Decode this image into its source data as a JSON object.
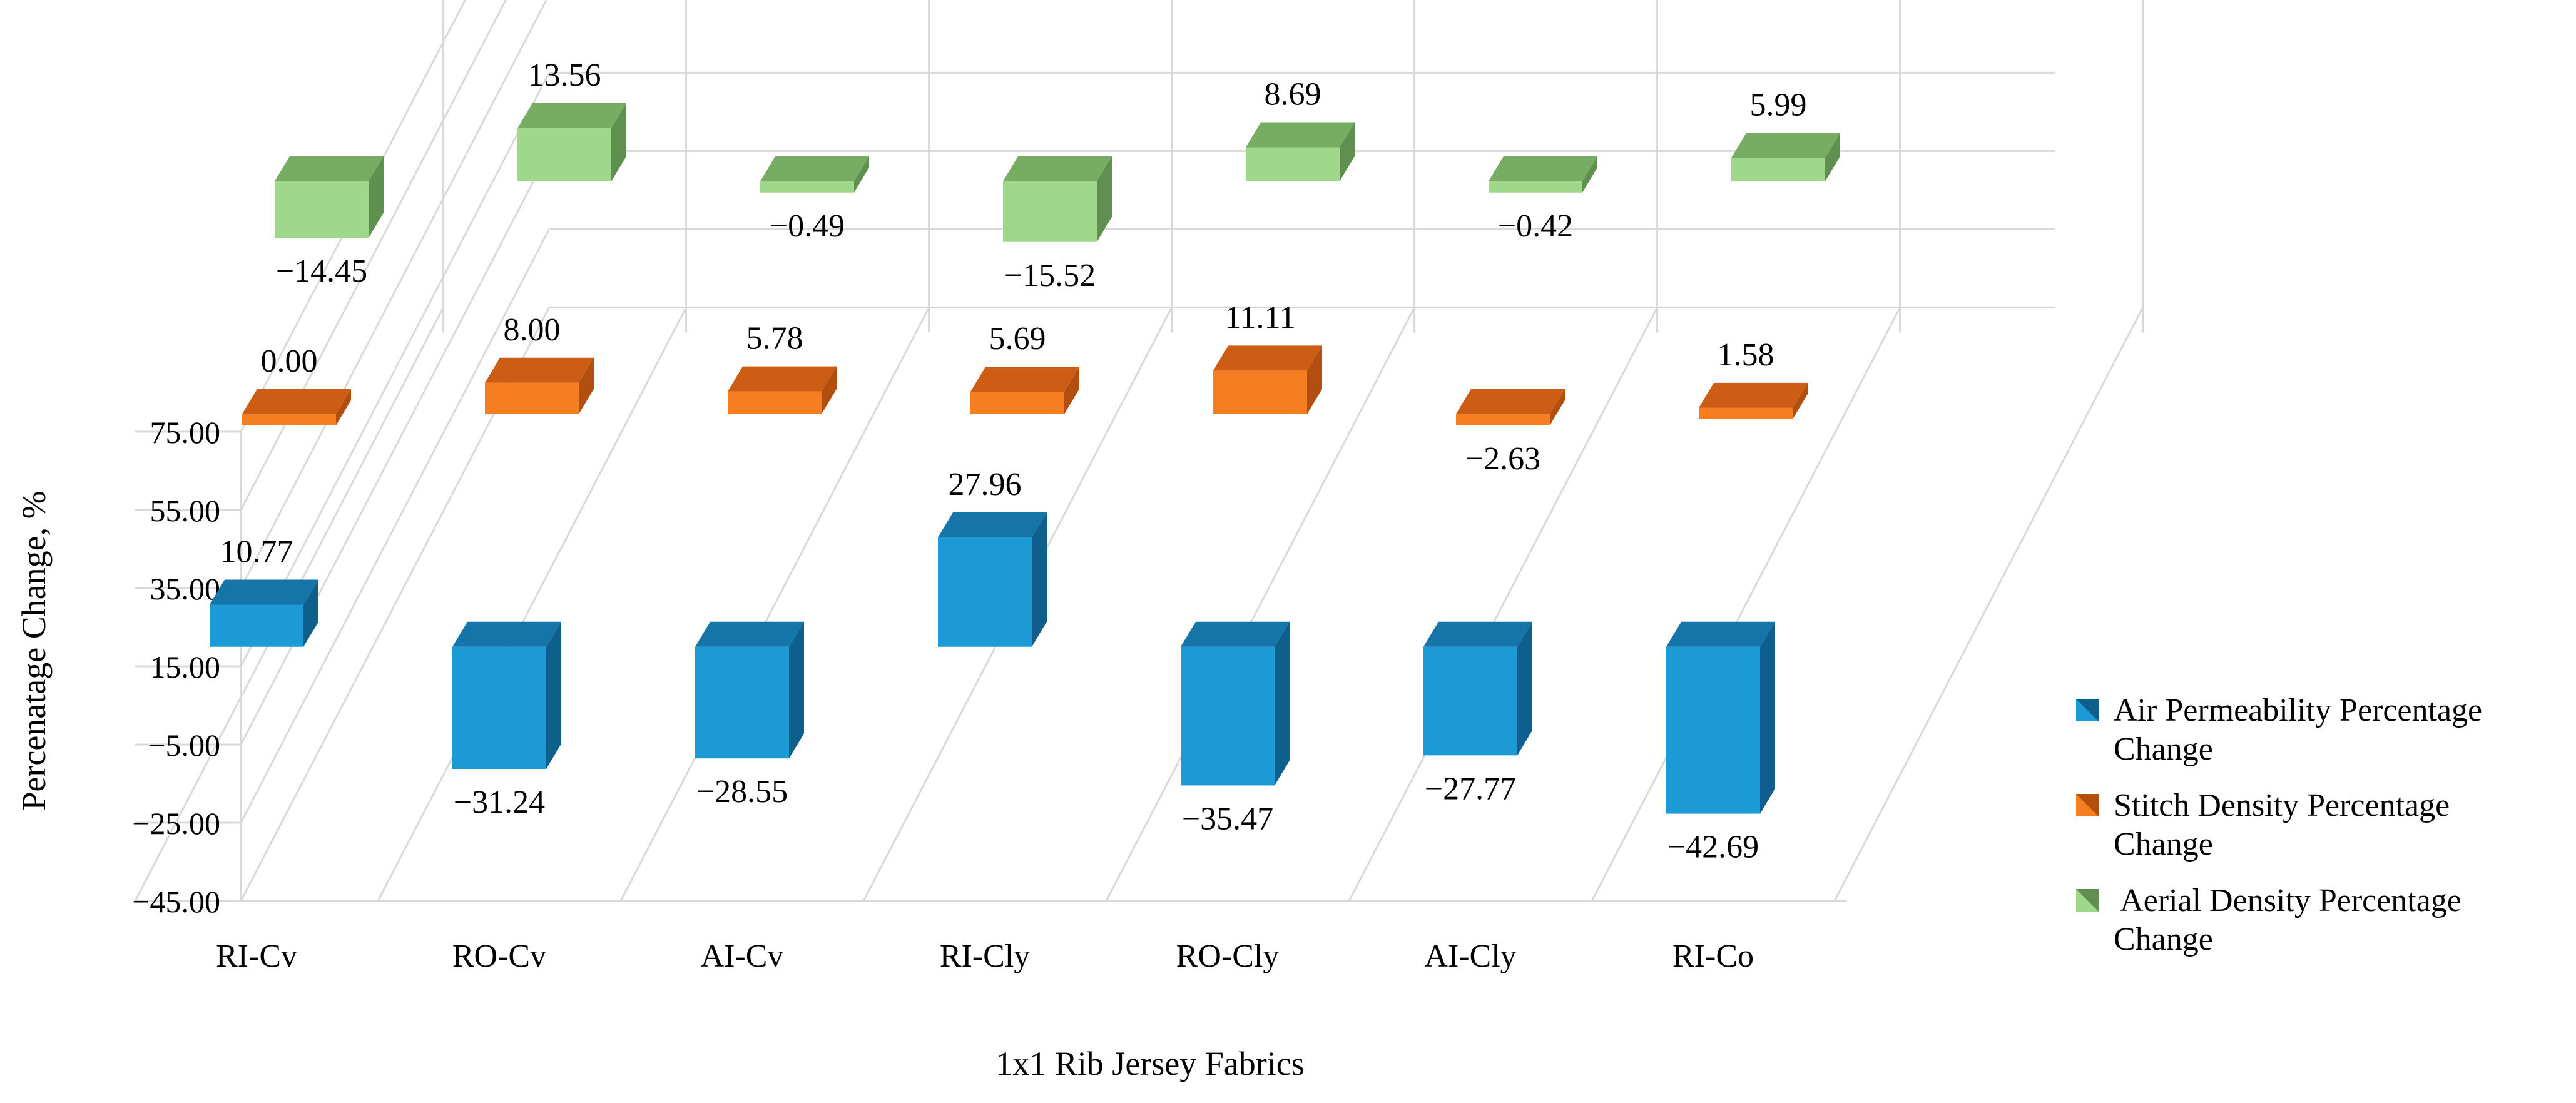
{
  "chart_data": {
    "type": "bar",
    "style": "3d-column",
    "title": "",
    "xlabel": "1x1 Rib Jersey Fabrics",
    "ylabel": "Percenatage Change, %",
    "ylim": [
      -45,
      75
    ],
    "yticks": [
      75,
      55,
      35,
      15,
      -5,
      -25,
      -45
    ],
    "ytick_labels": [
      "75.00",
      "55.00",
      "35.00",
      "15.00",
      "−5.00",
      "−25.00",
      "−45.00"
    ],
    "categories": [
      "RI-Cv",
      "RO-Cv",
      "AI-Cv",
      "RI-Cly",
      "RO-Cly",
      "AI-Cly",
      "RI-Co"
    ],
    "legend_position": "right",
    "series": [
      {
        "name": "Air Permeability Percentage Change",
        "legend_lines": [
          "Air Permeability Percentage",
          "Change"
        ],
        "color": "#1b9ad6",
        "top_color": "#1675a8",
        "side_color": "#0f5f8c",
        "values": [
          10.77,
          -31.24,
          -28.55,
          27.96,
          -35.47,
          -27.77,
          -42.69
        ],
        "labels": [
          "10.77",
          "−31.24",
          "−28.55",
          "27.96",
          "−35.47",
          "−27.77",
          "−42.69"
        ]
      },
      {
        "name": "Stitch Density Percentage Change",
        "legend_lines": [
          "Stitch Density Percentage",
          "Change"
        ],
        "color": "#f57f20",
        "top_color": "#cd5d14",
        "side_color": "#b24f0f",
        "values": [
          0.0,
          8.0,
          5.78,
          5.69,
          11.11,
          -2.63,
          1.58
        ],
        "labels": [
          "0.00",
          "8.00",
          "5.78",
          "5.69",
          "11.11",
          "−2.63",
          "1.58"
        ]
      },
      {
        "name": "Aerial Density Percentage Change",
        "legend_lines": [
          " Aerial Density Percentage",
          "Change"
        ],
        "color": "#9fd88a",
        "top_color": "#76ad63",
        "side_color": "#5f9050",
        "values": [
          -14.45,
          13.56,
          -0.49,
          -15.52,
          8.69,
          -0.42,
          5.99
        ],
        "labels": [
          "−14.45",
          "13.56",
          "−0.49",
          "−15.52",
          "8.69",
          "−0.42",
          "5.99"
        ]
      }
    ]
  }
}
